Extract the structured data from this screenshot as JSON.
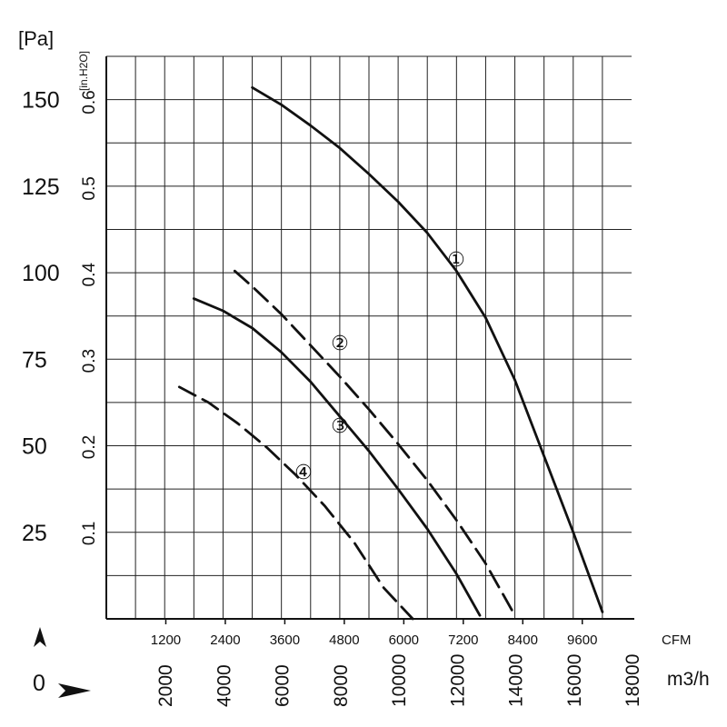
{
  "chart_data": {
    "type": "line",
    "units": {
      "pa": "[Pa]",
      "inh2o": "[in.H2O]",
      "cfm": "CFM",
      "m3h": "m3/h"
    },
    "pa_ticks": [
      25,
      50,
      75,
      100,
      125,
      150
    ],
    "inh2o_ticks": [
      "0.1",
      "0.2",
      "0.3",
      "0.4",
      "0.5",
      "0.6"
    ],
    "cfm_ticks": [
      1200,
      2400,
      3600,
      4800,
      6000,
      7200,
      8400,
      9600
    ],
    "m3h_ticks": [
      2000,
      4000,
      6000,
      8000,
      10000,
      12000,
      14000,
      16000,
      18000
    ],
    "origin_label": "0",
    "xlim_m3h": [
      0,
      18000
    ],
    "ylim_pa": [
      0,
      162.5
    ],
    "grid": true,
    "series": [
      {
        "name": "①",
        "style": "solid",
        "x": [
          5000,
          6000,
          7000,
          8000,
          9000,
          10000,
          11000,
          12000,
          13000,
          14000,
          15000,
          16000,
          17000
        ],
        "y": [
          153.5,
          148.5,
          142.5,
          136,
          128.5,
          120.5,
          111.5,
          100.5,
          87,
          69,
          47,
          25,
          2
        ]
      },
      {
        "name": "②",
        "style": "dashed",
        "x": [
          4400,
          5000,
          6000,
          7000,
          8000,
          9000,
          10000,
          11000,
          12000,
          13000,
          14000
        ],
        "y": [
          100.5,
          96,
          88,
          79,
          70,
          60.5,
          50.5,
          40,
          28.5,
          16,
          1
        ]
      },
      {
        "name": "③",
        "style": "solid",
        "x": [
          3000,
          4000,
          5000,
          6000,
          7000,
          8000,
          9000,
          10000,
          11000,
          12000,
          12800
        ],
        "y": [
          92.5,
          89,
          84,
          77,
          68.5,
          58.5,
          48.5,
          37.5,
          26,
          13,
          1
        ]
      },
      {
        "name": "④",
        "style": "dashed",
        "x": [
          2500,
          3500,
          4500,
          5500,
          6500,
          7500,
          8500,
          9500,
          10500
        ],
        "y": [
          67,
          62.5,
          56.5,
          49.5,
          41.5,
          32.5,
          22,
          9,
          0
        ]
      }
    ],
    "annotations": [
      "①",
      "②",
      "③",
      "④"
    ]
  }
}
